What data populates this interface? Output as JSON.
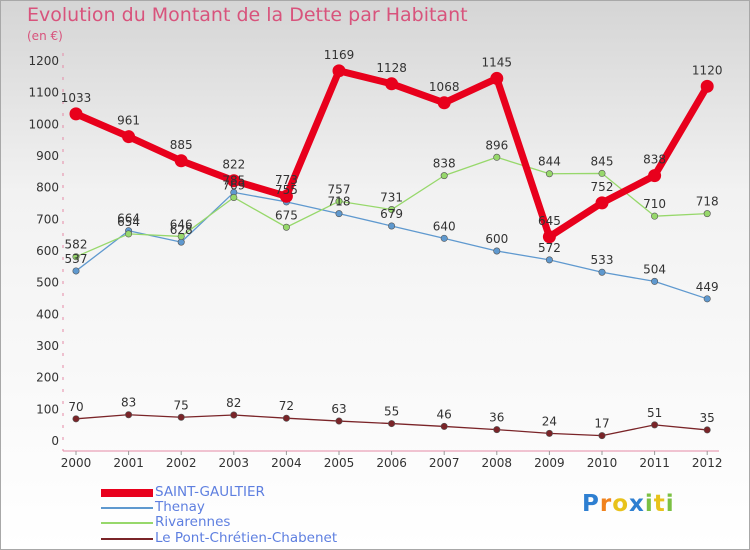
{
  "title": "Evolution du Montant de la Dette par Habitant",
  "unit": "(en €)",
  "chart_data": {
    "type": "line",
    "title": "Evolution du Montant de la Dette par Habitant",
    "ylabel": "(en €)",
    "xlabel": "",
    "ylim": [
      0,
      1200
    ],
    "yticks": [
      0,
      100,
      200,
      300,
      400,
      500,
      600,
      700,
      800,
      900,
      1000,
      1100,
      1200
    ],
    "grid": false,
    "legend_position": "bottom-left",
    "x": [
      "2000",
      "2001",
      "2002",
      "2003",
      "2004",
      "2005",
      "2006",
      "2007",
      "2008",
      "2009",
      "2010",
      "2011",
      "2012"
    ],
    "series": [
      {
        "name": "Le Pont-Chrétien-Chabenet",
        "color": "#7a2428",
        "values": [
          70,
          83,
          75,
          82,
          72,
          63,
          55,
          46,
          36,
          24,
          17,
          51,
          35
        ]
      },
      {
        "name": "Thenay",
        "color": "#5f99cf",
        "values": [
          537,
          664,
          628,
          785,
          755,
          718,
          679,
          640,
          600,
          572,
          533,
          504,
          449
        ]
      },
      {
        "name": "Rivarennes",
        "color": "#97d86b",
        "values": [
          582,
          654,
          646,
          769,
          675,
          757,
          731,
          838,
          896,
          844,
          845,
          710,
          718
        ]
      },
      {
        "name": "SAINT-GAULTIER",
        "color": "#e8001c",
        "values": [
          1033,
          961,
          885,
          822,
          773,
          1169,
          1128,
          1068,
          1145,
          645,
          752,
          838,
          1120
        ]
      }
    ]
  },
  "legend": [
    {
      "name": "SAINT-GAULTIER",
      "color": "#e8001c",
      "label_color": "#5e7fe0"
    },
    {
      "name": "Thenay",
      "color": "#5f99cf",
      "label_color": "#5e7fe0"
    },
    {
      "name": "Rivarennes",
      "color": "#97d86b",
      "label_color": "#5e7fe0"
    },
    {
      "name": "Le Pont-Chrétien-Chabenet",
      "color": "#7a2428",
      "label_color": "#5e7fe0"
    }
  ],
  "logo": {
    "text": "Proxiti",
    "letter_colors": [
      "#2e7fd1",
      "#f0821d",
      "#e8c21b",
      "#2e7fd1",
      "#7bc043",
      "#e8c21b",
      "#7bc043"
    ]
  }
}
